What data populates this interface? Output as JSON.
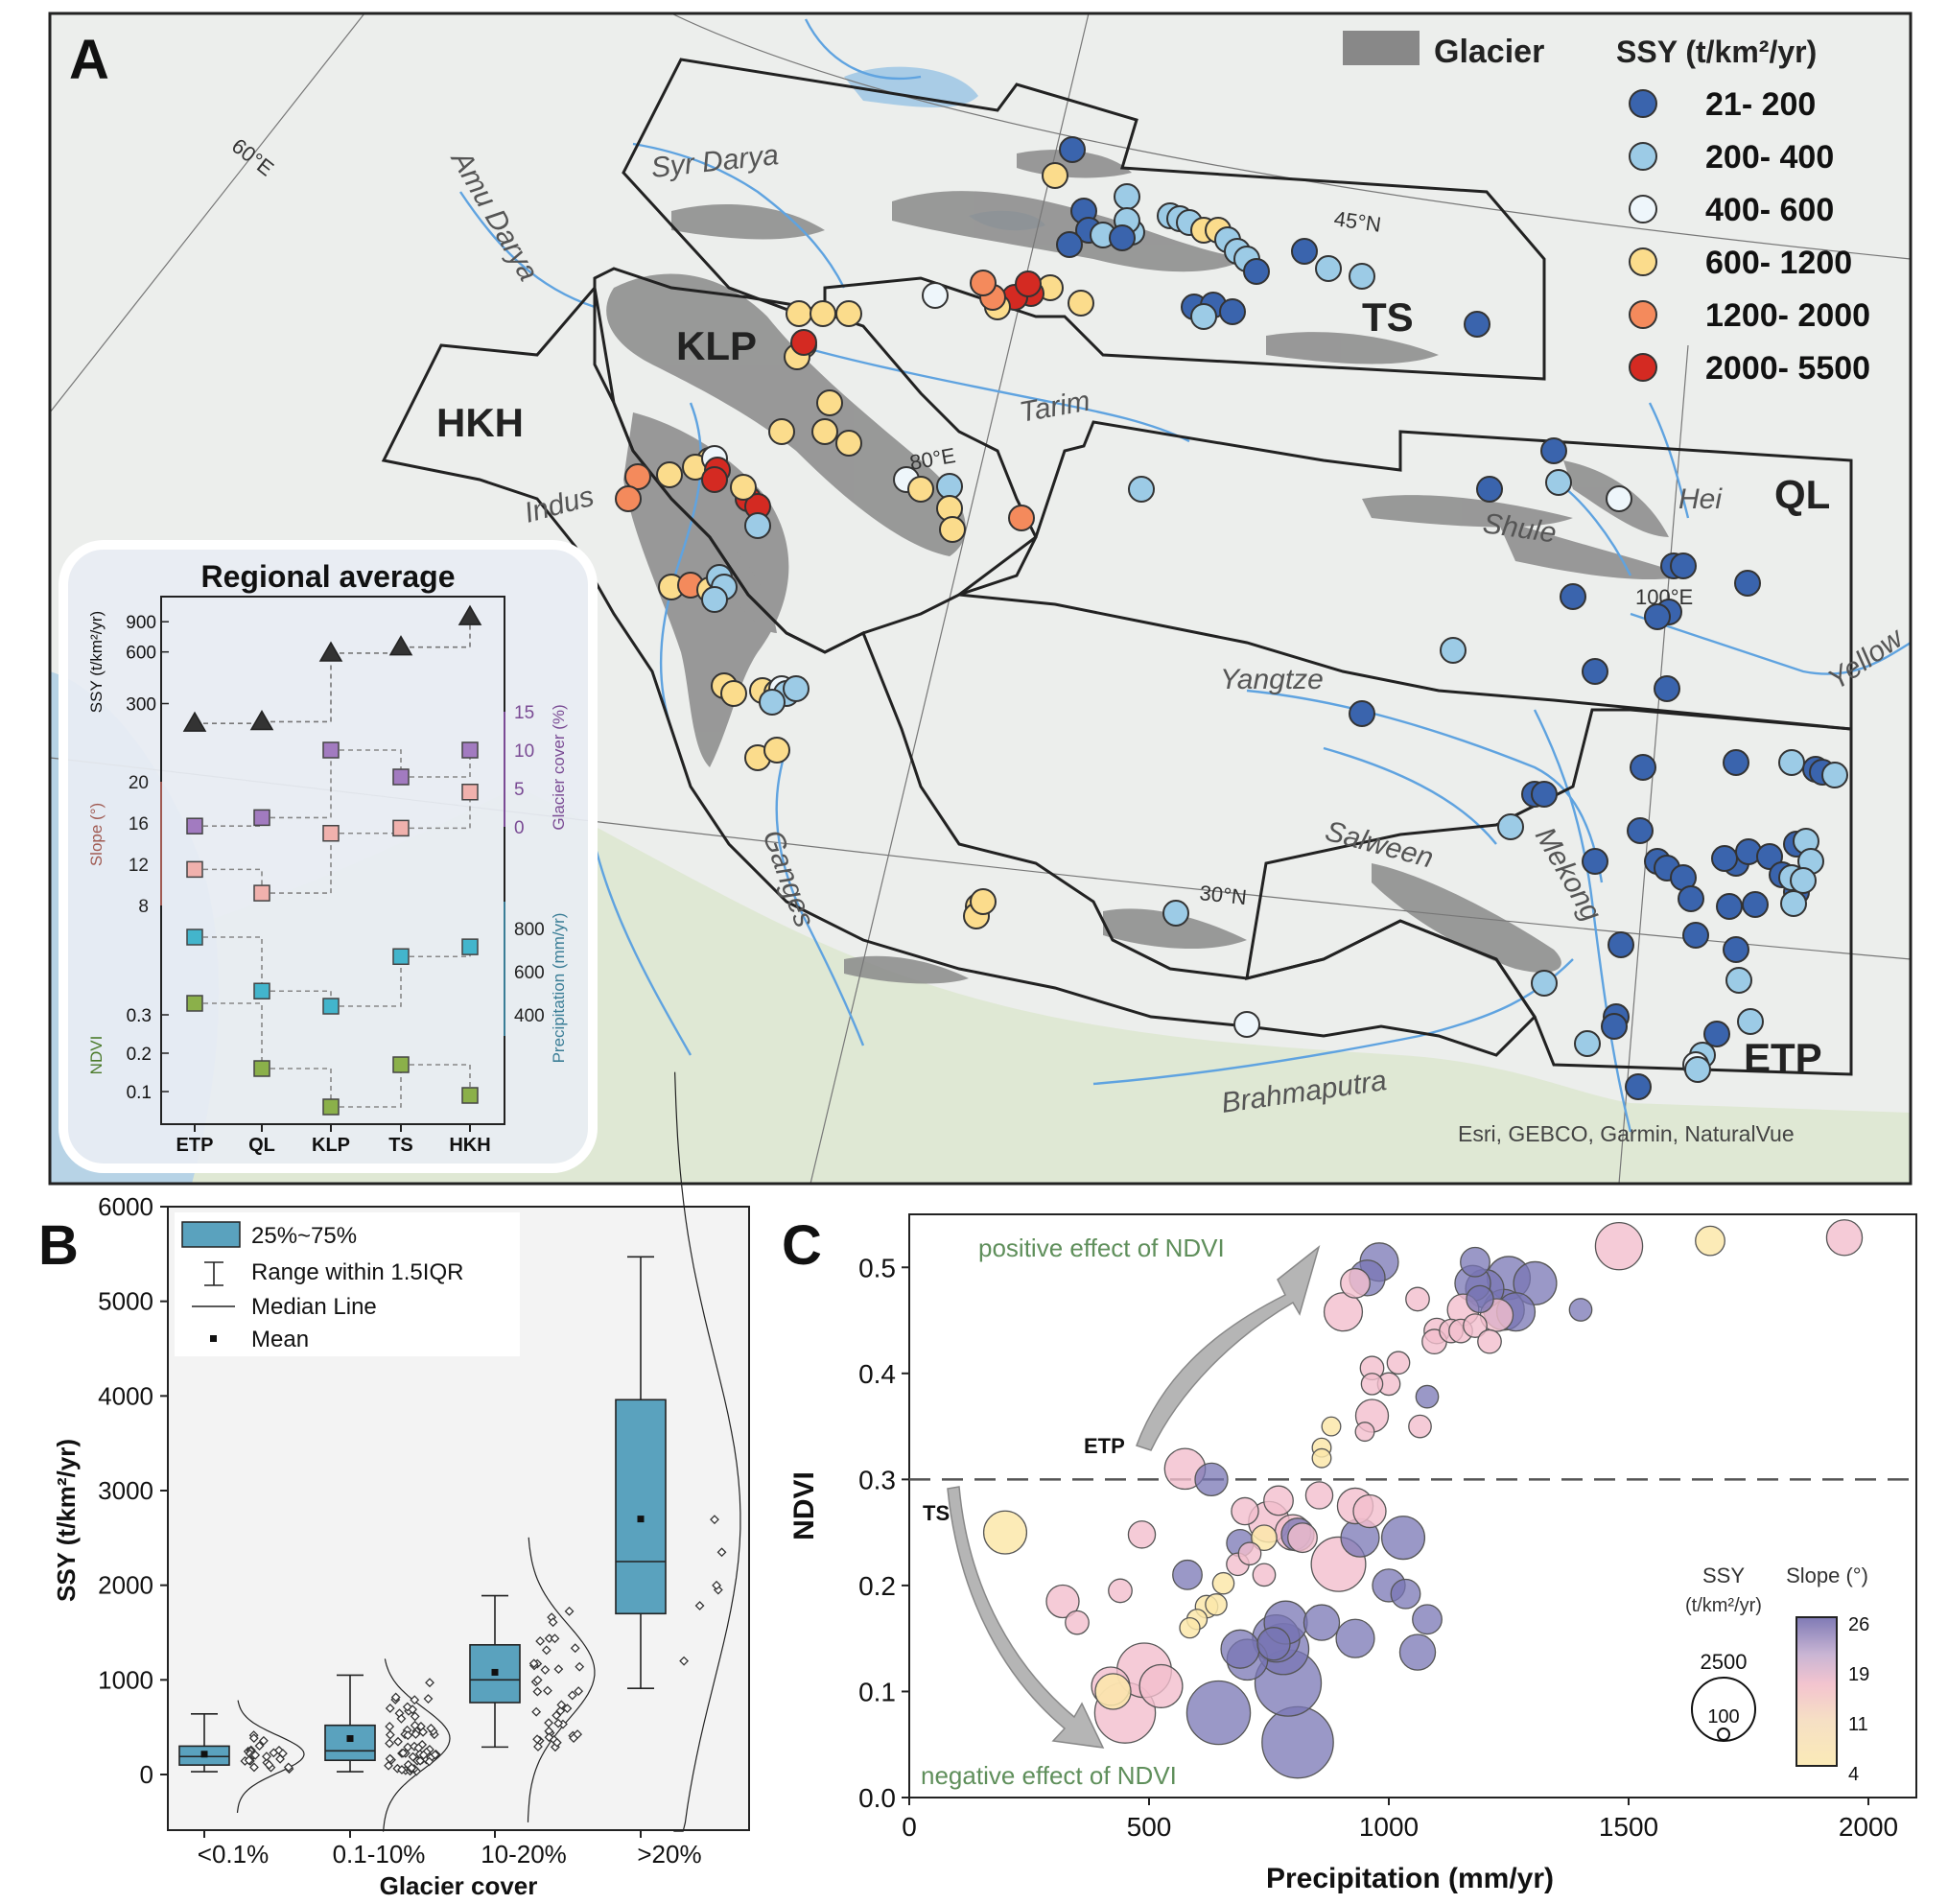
{
  "panelA": {
    "letter": "A",
    "legend": {
      "glacier_label": "Glacier",
      "ssy_title": "SSY (t/km²/yr)",
      "classes": [
        {
          "label": "21- 200",
          "color": "#3a64ad"
        },
        {
          "label": "200- 400",
          "color": "#9ccbe6"
        },
        {
          "label": "400- 600",
          "color": "#eef6fb"
        },
        {
          "label": "600- 1200",
          "color": "#fbdc8c"
        },
        {
          "label": "1200- 2000",
          "color": "#f48a5c"
        },
        {
          "label": "2000- 5500",
          "color": "#d42a22"
        }
      ]
    },
    "regions": [
      "TS",
      "KLP",
      "HKH",
      "QL",
      "ETP"
    ],
    "rivers": [
      "Syr Darya",
      "Amu Darya",
      "Tarim",
      "Indus",
      "Shule",
      "Hei",
      "Yangtze",
      "Yellow",
      "Salween",
      "Mekong",
      "Ganges",
      "Brahmaputra"
    ],
    "graticule": [
      "60°E",
      "80°E",
      "100°E",
      "45°N",
      "30°N"
    ],
    "attribution": "Esri, GEBCO, Garmin, NaturalVue",
    "inset": {
      "title": "Regional average",
      "categories": [
        "ETP",
        "QL",
        "KLP",
        "TS",
        "HKH"
      ],
      "ssy": {
        "label": "SSY (t/km²/yr)",
        "ticks": [
          "900",
          "600",
          "300"
        ],
        "values": [
          230,
          235,
          590,
          640,
          960
        ]
      },
      "glacier": {
        "label": "Glacier cover (%)",
        "ticks": [
          "15",
          "10",
          "5",
          "0"
        ],
        "values": [
          0.1,
          1.2,
          10,
          6.5,
          10
        ]
      },
      "slope": {
        "label": "Slope (°)",
        "ticks": [
          "20",
          "16",
          "12",
          "8"
        ],
        "values": [
          11.5,
          9.2,
          15,
          15.5,
          19
        ]
      },
      "precip": {
        "label": "Precipitation (mm/yr)",
        "ticks": [
          "800",
          "600",
          "400"
        ],
        "values": [
          760,
          510,
          440,
          670,
          715
        ]
      },
      "ndvi": {
        "label": "NDVI",
        "ticks": [
          "0.3",
          "0.2",
          "0.1"
        ],
        "values": [
          0.33,
          0.16,
          0.06,
          0.17,
          0.09
        ]
      }
    }
  },
  "panelB": {
    "letter": "B",
    "chart_data": {
      "type": "box",
      "categories": [
        "<0.1%",
        "0.1-10%",
        "10-20%",
        ">20%"
      ],
      "xlabel": "Glacier cover",
      "ylabel": "SSY (t/km²/yr)",
      "ylim": [
        -500,
        6000
      ],
      "yticks": [
        0,
        1000,
        2000,
        3000,
        4000,
        5000,
        6000
      ],
      "boxes": [
        {
          "q1": 100,
          "median": 190,
          "q3": 300,
          "whisker_low": 30,
          "whisker_high": 640,
          "mean": 215
        },
        {
          "q1": 150,
          "median": 250,
          "q3": 520,
          "whisker_low": 30,
          "whisker_high": 1050,
          "mean": 380
        },
        {
          "q1": 760,
          "median": 1000,
          "q3": 1370,
          "whisker_low": 290,
          "whisker_high": 1890,
          "mean": 1080
        },
        {
          "q1": 1700,
          "median": 2250,
          "q3": 3960,
          "whisker_low": 910,
          "whisker_high": 5470,
          "mean": 2700
        }
      ],
      "legend": [
        "25%~75%",
        "Range within 1.5IQR",
        "Median Line",
        "Mean"
      ]
    }
  },
  "panelC": {
    "letter": "C",
    "chart_data": {
      "type": "scatter",
      "xlabel": "Precipitation (mm/yr)",
      "ylabel": "NDVI",
      "xlim": [
        0,
        2100
      ],
      "ylim": [
        0,
        0.55
      ],
      "xticks": [
        0,
        500,
        1000,
        1500,
        2000
      ],
      "yticks": [
        0.0,
        0.1,
        0.2,
        0.3,
        0.4,
        0.5
      ],
      "threshold": 0.3,
      "annotations": [
        "positive effect of NDVI",
        "negative effect of NDVI",
        "ETP",
        "TS"
      ],
      "size_legend": {
        "title": "SSY",
        "unit": "(t/km²/yr)",
        "values": [
          "2500",
          "100"
        ]
      },
      "color_legend": {
        "title": "Slope (°)",
        "ticks": [
          "26",
          "19",
          "11",
          "4"
        ]
      },
      "points": [
        [
          980,
          0.505,
          300,
          24
        ],
        [
          955,
          0.49,
          250,
          23
        ],
        [
          930,
          0.485,
          150,
          14
        ],
        [
          905,
          0.458,
          300,
          13
        ],
        [
          1180,
          0.505,
          150,
          21
        ],
        [
          1175,
          0.485,
          250,
          22
        ],
        [
          1200,
          0.48,
          300,
          24
        ],
        [
          1250,
          0.49,
          400,
          23
        ],
        [
          1305,
          0.485,
          400,
          22
        ],
        [
          1240,
          0.46,
          350,
          23
        ],
        [
          1265,
          0.458,
          300,
          24
        ],
        [
          1155,
          0.46,
          180,
          17
        ],
        [
          1225,
          0.455,
          200,
          16
        ],
        [
          1190,
          0.47,
          120,
          21
        ],
        [
          1060,
          0.47,
          80,
          14
        ],
        [
          1100,
          0.44,
          100,
          14
        ],
        [
          1130,
          0.44,
          80,
          14
        ],
        [
          1150,
          0.44,
          80,
          12
        ],
        [
          1180,
          0.445,
          80,
          13
        ],
        [
          1210,
          0.43,
          80,
          13
        ],
        [
          1095,
          0.43,
          90,
          14
        ],
        [
          1020,
          0.41,
          70,
          13
        ],
        [
          965,
          0.405,
          80,
          14
        ],
        [
          965,
          0.39,
          60,
          12
        ],
        [
          1000,
          0.39,
          70,
          13
        ],
        [
          965,
          0.36,
          200,
          14
        ],
        [
          1065,
          0.35,
          70,
          14
        ],
        [
          1080,
          0.378,
          70,
          21
        ],
        [
          1400,
          0.46,
          70,
          22
        ],
        [
          1480,
          0.52,
          500,
          14
        ],
        [
          1670,
          0.525,
          150,
          6
        ],
        [
          1950,
          0.528,
          250,
          15
        ],
        [
          950,
          0.345,
          40,
          12
        ],
        [
          880,
          0.35,
          40,
          8
        ],
        [
          860,
          0.33,
          40,
          6
        ],
        [
          860,
          0.32,
          40,
          6
        ],
        [
          575,
          0.31,
          350,
          14
        ],
        [
          630,
          0.3,
          200,
          21
        ],
        [
          200,
          0.25,
          400,
          6
        ],
        [
          320,
          0.185,
          200,
          14
        ],
        [
          350,
          0.165,
          80,
          14
        ],
        [
          440,
          0.195,
          80,
          14
        ],
        [
          485,
          0.248,
          120,
          14
        ],
        [
          580,
          0.21,
          150,
          21
        ],
        [
          620,
          0.18,
          70,
          6
        ],
        [
          690,
          0.24,
          120,
          21
        ],
        [
          700,
          0.27,
          120,
          14
        ],
        [
          770,
          0.28,
          150,
          14
        ],
        [
          750,
          0.26,
          350,
          14
        ],
        [
          740,
          0.245,
          100,
          6
        ],
        [
          800,
          0.25,
          250,
          14
        ],
        [
          810,
          0.248,
          200,
          24
        ],
        [
          820,
          0.245,
          150,
          14
        ],
        [
          855,
          0.285,
          120,
          14
        ],
        [
          940,
          0.245,
          300,
          22
        ],
        [
          930,
          0.275,
          250,
          14
        ],
        [
          895,
          0.22,
          700,
          14
        ],
        [
          960,
          0.27,
          200,
          14
        ],
        [
          1030,
          0.245,
          400,
          22
        ],
        [
          1000,
          0.2,
          200,
          22
        ],
        [
          1080,
          0.168,
          150,
          22
        ],
        [
          1035,
          0.192,
          150,
          23
        ],
        [
          685,
          0.22,
          70,
          14
        ],
        [
          710,
          0.23,
          70,
          14
        ],
        [
          740,
          0.21,
          70,
          14
        ],
        [
          655,
          0.202,
          60,
          6
        ],
        [
          640,
          0.182,
          60,
          6
        ],
        [
          600,
          0.168,
          50,
          6
        ],
        [
          585,
          0.16,
          50,
          6
        ],
        [
          760,
          0.145,
          200,
          22
        ],
        [
          705,
          0.13,
          350,
          24
        ],
        [
          690,
          0.14,
          300,
          22
        ],
        [
          780,
          0.14,
          600,
          23
        ],
        [
          765,
          0.15,
          500,
          23
        ],
        [
          785,
          0.165,
          400,
          23
        ],
        [
          860,
          0.165,
          250,
          23
        ],
        [
          930,
          0.15,
          300,
          23
        ],
        [
          1060,
          0.137,
          250,
          22
        ],
        [
          645,
          0.08,
          1000,
          24
        ],
        [
          790,
          0.108,
          1100,
          24
        ],
        [
          810,
          0.052,
          1300,
          24
        ],
        [
          490,
          0.12,
          700,
          14
        ],
        [
          450,
          0.08,
          900,
          14
        ],
        [
          525,
          0.105,
          400,
          15
        ],
        [
          420,
          0.105,
          300,
          13
        ],
        [
          425,
          0.1,
          250,
          8
        ]
      ]
    }
  }
}
